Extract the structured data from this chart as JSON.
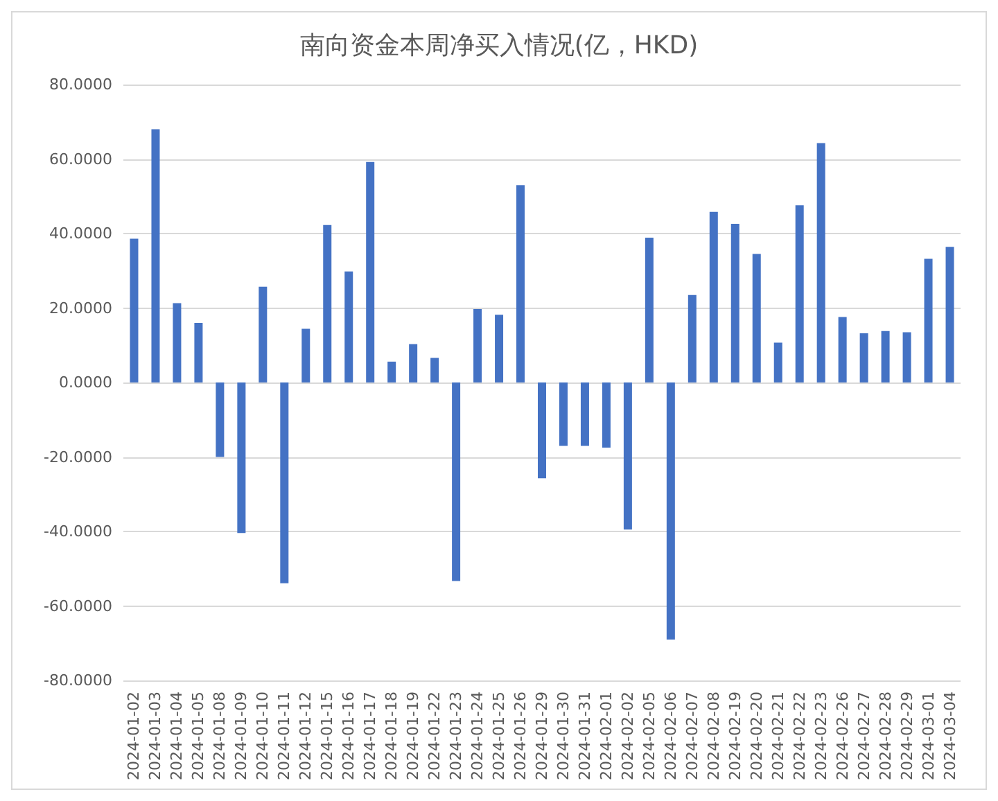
{
  "chart_data": {
    "type": "bar",
    "title": "南向资金本周净买入情况(亿，HKD)",
    "categories": [
      "2024-01-02",
      "2024-01-03",
      "2024-01-04",
      "2024-01-05",
      "2024-01-08",
      "2024-01-09",
      "2024-01-10",
      "2024-01-11",
      "2024-01-12",
      "2024-01-15",
      "2024-01-16",
      "2024-01-17",
      "2024-01-18",
      "2024-01-19",
      "2024-01-22",
      "2024-01-23",
      "2024-01-24",
      "2024-01-25",
      "2024-01-26",
      "2024-01-29",
      "2024-01-30",
      "2024-01-31",
      "2024-02-01",
      "2024-02-02",
      "2024-02-05",
      "2024-02-06",
      "2024-02-07",
      "2024-02-08",
      "2024-02-19",
      "2024-02-20",
      "2024-02-21",
      "2024-02-22",
      "2024-02-23",
      "2024-02-26",
      "2024-02-27",
      "2024-02-28",
      "2024-02-29",
      "2024-03-01",
      "2024-03-04"
    ],
    "values": [
      38.6,
      68.0,
      21.3,
      16.0,
      -20.0,
      -40.4,
      25.7,
      -53.9,
      14.4,
      42.3,
      29.8,
      59.2,
      5.6,
      10.3,
      6.6,
      -53.3,
      19.7,
      18.2,
      53.0,
      -25.7,
      -17.0,
      -17.0,
      -17.5,
      -39.5,
      38.9,
      -69.0,
      23.5,
      45.8,
      42.6,
      34.5,
      10.7,
      47.6,
      64.3,
      17.6,
      13.2,
      13.8,
      13.5,
      33.2,
      36.4
    ],
    "color": "#4472c4",
    "ylim": [
      -80,
      80
    ],
    "yticks": [
      {
        "value": -80,
        "label": "-80.0000"
      },
      {
        "value": -60,
        "label": "-60.0000"
      },
      {
        "value": -40,
        "label": "-40.0000"
      },
      {
        "value": -20,
        "label": "-20.0000"
      },
      {
        "value": 0,
        "label": "0.0000"
      },
      {
        "value": 20,
        "label": "20.0000"
      },
      {
        "value": 40,
        "label": "40.0000"
      },
      {
        "value": 60,
        "label": "60.0000"
      },
      {
        "value": 80,
        "label": "80.0000"
      }
    ],
    "grid": "y"
  }
}
